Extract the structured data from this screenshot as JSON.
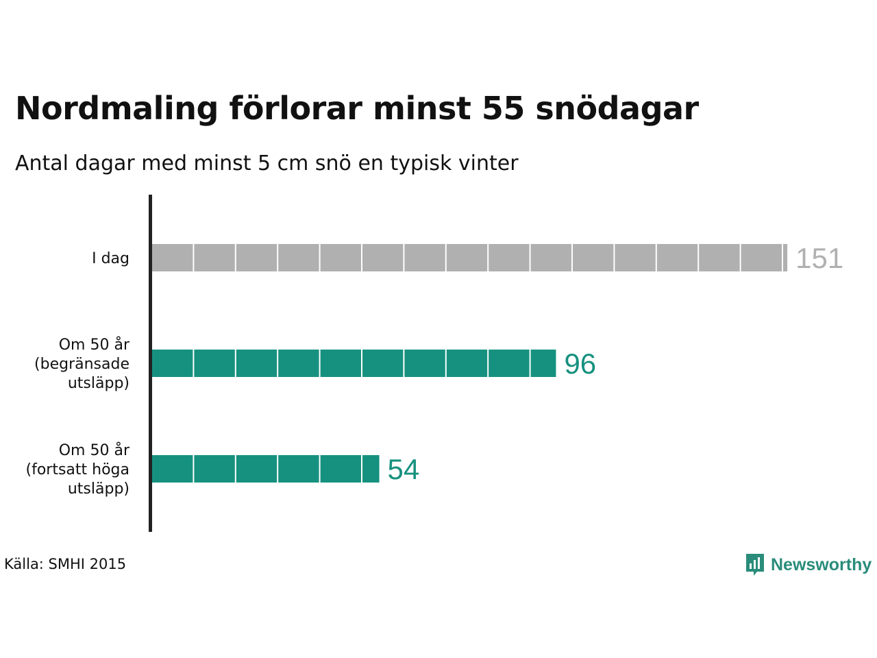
{
  "title": "Nordmaling förlorar minst 55 snödagar",
  "subtitle": "Antal dagar med minst 5 cm snö en typisk vinter",
  "source": "Källa: SMHI 2015",
  "brand": {
    "name": "Newsworthy",
    "color": "#2a8c7a",
    "icon": "chart-speech-bubble-icon"
  },
  "chart_data": {
    "type": "bar",
    "orientation": "horizontal",
    "categories": [
      [
        "I dag"
      ],
      [
        "Om 50 år",
        "(begränsade",
        "utsläpp)"
      ],
      [
        "Om 50 år",
        "(fortsatt höga",
        "utsläpp)"
      ]
    ],
    "values": [
      151,
      96,
      54
    ],
    "value_labels": [
      "151",
      "96",
      "54"
    ],
    "colors": [
      "#b0b0b0",
      "#16917f",
      "#16917f"
    ],
    "segment_size": 10,
    "grid": false,
    "legend": "none"
  }
}
